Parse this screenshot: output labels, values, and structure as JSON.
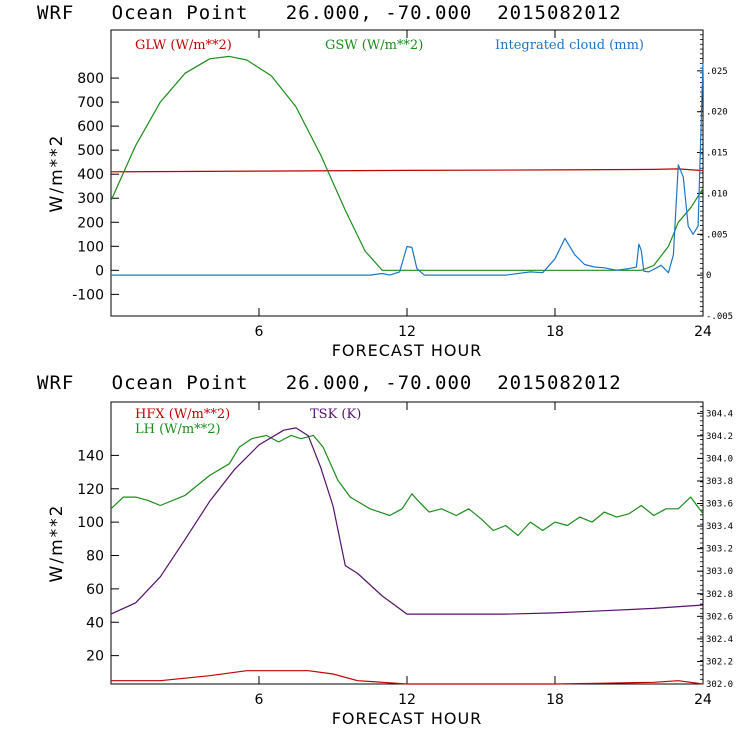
{
  "chart_data": [
    {
      "type": "line",
      "title": "WRF   Ocean Point   26.000, -70.000  2015082012",
      "xlabel": "FORECAST HOUR",
      "ylabel": "W/m**2",
      "xlim": [
        0,
        24
      ],
      "ylim": [
        -190,
        1000
      ],
      "xticks": [
        6,
        12,
        18,
        24
      ],
      "yticks": [
        -100,
        0,
        100,
        200,
        300,
        400,
        500,
        600,
        700,
        800
      ],
      "y2lim": [
        -0.005,
        0.03
      ],
      "y2ticks": [
        -0.005,
        0,
        0.005,
        0.01,
        0.015,
        0.02,
        0.025
      ],
      "y2ticklabels": [
        "-.005",
        "0",
        ".005",
        ".010",
        ".015",
        ".020",
        ".025"
      ],
      "legend": [
        "GLW (W/m**2)",
        "GSW (W/m**2)",
        "Integrated cloud (mm)"
      ],
      "series": [
        {
          "name": "GLW (W/m**2)",
          "color": "#c00000",
          "axis": "left",
          "x": [
            0,
            6,
            12,
            18,
            22,
            23,
            24
          ],
          "y": [
            410,
            413,
            416,
            418,
            420,
            422,
            415
          ]
        },
        {
          "name": "GSW (W/m**2)",
          "color": "#1a8c1a",
          "axis": "left",
          "x": [
            0,
            1,
            2,
            3,
            4,
            4.8,
            5.5,
            6.5,
            7.5,
            8.5,
            9.5,
            10.3,
            11,
            21.5,
            22,
            22.3,
            22.6,
            23,
            23.5,
            24
          ],
          "y": [
            290,
            520,
            700,
            820,
            880,
            890,
            875,
            810,
            680,
            480,
            250,
            80,
            0,
            0,
            20,
            60,
            100,
            200,
            260,
            340
          ]
        },
        {
          "name": "Integrated cloud (mm)",
          "color": "#1a75c9",
          "axis": "right",
          "x": [
            0,
            10.5,
            11,
            11.3,
            11.7,
            12,
            12.2,
            12.4,
            12.7,
            16,
            17,
            17.5,
            18,
            18.4,
            18.8,
            19.2,
            19.6,
            20,
            20.5,
            21,
            21.3,
            21.4,
            21.5,
            21.6,
            21.8,
            22,
            22.3,
            22.6,
            22.8,
            23,
            23.2,
            23.4,
            23.6,
            23.8,
            24
          ],
          "y": [
            0,
            0,
            0.0002,
            0,
            0.0004,
            0.0035,
            0.0034,
            0.0008,
            0,
            0,
            0.0004,
            0.0003,
            0.002,
            0.0045,
            0.0025,
            0.0013,
            0.001,
            0.0009,
            0.0006,
            0.0008,
            0.001,
            0.0038,
            0.003,
            0.0005,
            0.0004,
            0.0007,
            0.0012,
            0.0003,
            0.0025,
            0.0135,
            0.012,
            0.006,
            0.005,
            0.006,
            0.026
          ]
        }
      ]
    },
    {
      "type": "line",
      "title": "WRF   Ocean Point   26.000, -70.000  2015082012",
      "xlabel": "FORECAST HOUR",
      "ylabel": "W/m**2",
      "xlim": [
        0,
        24
      ],
      "ylim": [
        3,
        172
      ],
      "xticks": [
        6,
        12,
        18,
        24
      ],
      "yticks": [
        20,
        40,
        60,
        80,
        100,
        120,
        140
      ],
      "y2lim": [
        302.0,
        304.5
      ],
      "y2ticks": [
        302.0,
        302.2,
        302.4,
        302.6,
        302.8,
        303.0,
        303.2,
        303.4,
        303.6,
        303.8,
        304.0,
        304.2,
        304.4
      ],
      "y2ticklabels": [
        "302.0",
        "302.2",
        "302.4",
        "302.6",
        "302.8",
        "303.0",
        "303.2",
        "303.4",
        "303.6",
        "303.8",
        "304.0",
        "304.2",
        "304.4"
      ],
      "legend": [
        "HFX (W/m**2)",
        "LH  (W/m**2)",
        "TSK (K)"
      ],
      "series": [
        {
          "name": "HFX (W/m**2)",
          "color": "#c00000",
          "axis": "left",
          "x": [
            0,
            2,
            4,
            5.5,
            7,
            8,
            9,
            10,
            11,
            12,
            14,
            16,
            18,
            20,
            22,
            23,
            24
          ],
          "y": [
            5,
            5,
            8,
            11,
            11,
            11,
            9,
            5,
            4,
            3,
            3,
            3,
            3,
            3.5,
            4,
            5,
            3
          ]
        },
        {
          "name": "LH  (W/m**2)",
          "color": "#1a8c1a",
          "axis": "left",
          "x": [
            0,
            0.5,
            1,
            1.5,
            2,
            3,
            4,
            4.8,
            5.2,
            5.7,
            6.3,
            6.8,
            7.3,
            7.7,
            8.2,
            8.6,
            9.2,
            9.7,
            10.5,
            11.3,
            11.8,
            12.2,
            12.5,
            12.9,
            13.4,
            14,
            14.5,
            15,
            15.5,
            16,
            16.5,
            17,
            17.5,
            18,
            18.5,
            19,
            19.5,
            20,
            20.5,
            21,
            21.5,
            22,
            22.5,
            23,
            23.5,
            24
          ],
          "y": [
            108,
            115,
            115,
            113,
            110,
            116,
            128,
            135,
            145,
            150,
            152,
            148,
            152,
            150,
            152,
            145,
            125,
            115,
            108,
            104,
            108,
            117,
            112,
            106,
            108,
            104,
            108,
            102,
            95,
            98,
            92,
            100,
            95,
            100,
            98,
            103,
            100,
            106,
            103,
            105,
            110,
            104,
            108,
            108,
            115,
            105
          ]
        },
        {
          "name": "TSK (K)",
          "color": "#55116b",
          "axis": "right",
          "x": [
            0,
            1,
            2,
            3,
            4,
            5,
            6,
            7,
            7.5,
            8,
            8.5,
            9,
            9.5,
            10,
            11,
            12,
            14,
            16,
            18,
            20,
            22,
            24
          ],
          "y": [
            302.62,
            302.72,
            302.95,
            303.28,
            303.62,
            303.9,
            304.12,
            304.25,
            304.27,
            304.2,
            303.92,
            303.58,
            303.05,
            302.98,
            302.78,
            302.62,
            302.62,
            302.62,
            302.63,
            302.65,
            302.67,
            302.7
          ]
        }
      ]
    }
  ]
}
